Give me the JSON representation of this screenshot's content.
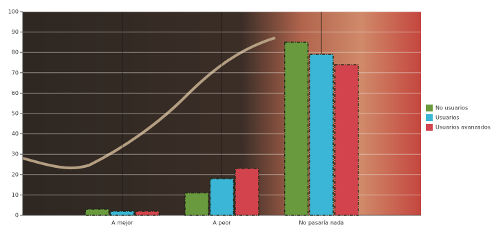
{
  "chart_data": {
    "type": "bar",
    "categories": [
      "A mejor",
      "A peor",
      "No pasaría nada"
    ],
    "series": [
      {
        "name": "No usuarios",
        "color": "#6a9a3e",
        "values": [
          3,
          11,
          85
        ]
      },
      {
        "name": "Usuarios",
        "color": "#3bb6d6",
        "values": [
          2,
          18,
          79
        ]
      },
      {
        "name": "Usuarios avanzados",
        "color": "#d2434d",
        "values": [
          2,
          23,
          74
        ]
      }
    ],
    "ylim": [
      0,
      100
    ],
    "yticks": [
      0,
      10,
      20,
      30,
      40,
      50,
      60,
      70,
      80,
      90,
      100
    ],
    "grid": true,
    "legend": "right"
  }
}
